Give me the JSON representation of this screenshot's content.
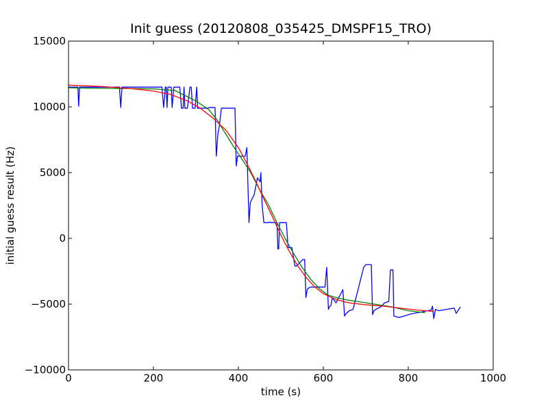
{
  "chart_data": {
    "type": "line",
    "title": "Init guess (20120808_035425_DMSPF15_TRO)",
    "xlabel": "time (s)",
    "ylabel": "initial guess result (Hz)",
    "xlim": [
      0,
      1000
    ],
    "ylim": [
      -10000,
      15000
    ],
    "xticks": [
      0,
      200,
      400,
      600,
      800,
      1000
    ],
    "yticks": [
      -10000,
      -5000,
      0,
      5000,
      10000,
      15000
    ],
    "grid": false,
    "legend": "none",
    "series": [
      {
        "color": "#0000ff",
        "x": [
          0,
          22,
          24,
          26,
          120,
          123,
          126,
          220,
          224,
          228,
          230,
          232,
          234,
          238,
          242,
          244,
          248,
          250,
          262,
          266,
          270,
          272,
          274,
          280,
          286,
          289,
          292,
          294,
          298,
          302,
          304,
          306,
          310,
          328,
          331,
          345,
          348,
          352,
          355,
          360,
          392,
          395,
          398,
          416,
          420,
          425,
          428,
          432,
          437,
          445,
          451,
          453,
          456,
          460,
          468,
          471,
          474,
          476,
          478,
          490,
          491,
          493,
          495,
          497,
          500,
          509,
          513,
          517,
          526,
          533,
          537,
          552,
          556,
          559,
          562,
          564,
          570,
          604,
          608,
          612,
          614,
          618,
          621,
          630,
          646,
          650,
          654,
          656,
          661,
          670,
          695,
          700,
          713,
          716,
          719,
          724,
          729,
          736,
          744,
          754,
          758,
          764,
          766,
          776,
          780,
          806,
          854,
          857,
          860,
          864,
          872,
          908,
          913,
          918,
          923
        ],
        "values": [
          11500,
          11500,
          10050,
          11500,
          11500,
          9950,
          11500,
          11500,
          9950,
          11500,
          11500,
          9950,
          11500,
          11500,
          11500,
          9950,
          11500,
          11500,
          11500,
          9900,
          9900,
          11500,
          9900,
          9900,
          11500,
          11500,
          9900,
          9900,
          9900,
          11500,
          9900,
          9900,
          9900,
          9900,
          9950,
          9950,
          6250,
          8000,
          8500,
          9900,
          9900,
          5500,
          6250,
          6250,
          6900,
          1200,
          2700,
          3000,
          3300,
          4600,
          4300,
          5000,
          2500,
          1200,
          1200,
          1200,
          1250,
          1200,
          1200,
          1200,
          1100,
          -800,
          -800,
          1200,
          1200,
          1200,
          1200,
          -700,
          -700,
          -2100,
          -2100,
          -1600,
          -1600,
          -4500,
          -3900,
          -3800,
          -3700,
          -3700,
          -2200,
          -5400,
          -5200,
          -5100,
          -4500,
          -4900,
          -3900,
          -5900,
          -5700,
          -5650,
          -5500,
          -5400,
          -2200,
          -2000,
          -2000,
          -5800,
          -5500,
          -5400,
          -5300,
          -5200,
          -4900,
          -4800,
          -2400,
          -2400,
          -5900,
          -6000,
          -6000,
          -5750,
          -5450,
          -5150,
          -6100,
          -5400,
          -5500,
          -5300,
          -5700,
          -5450,
          -5200
        ]
      },
      {
        "color": "#008000",
        "x": [
          0,
          50,
          100,
          150,
          200,
          250,
          300,
          330,
          350,
          370,
          390,
          410,
          430,
          450,
          470,
          490,
          510,
          530,
          550,
          570,
          590,
          610,
          630,
          650,
          680,
          720,
          760,
          800,
          840
        ],
        "values": [
          11450,
          11420,
          11400,
          11390,
          11370,
          11250,
          10450,
          9800,
          9000,
          7950,
          6900,
          5950,
          4950,
          3700,
          2600,
          1250,
          0,
          -1150,
          -2200,
          -3100,
          -3800,
          -4300,
          -4500,
          -4650,
          -4800,
          -5000,
          -5200,
          -5500,
          -5650
        ]
      },
      {
        "color": "#ff0000",
        "x": [
          0,
          40,
          80,
          120,
          160,
          200,
          240,
          280,
          310,
          340,
          370,
          400,
          420,
          440,
          460,
          480,
          500,
          520,
          540,
          560,
          580,
          600,
          630,
          660,
          700,
          740,
          780,
          820,
          860
        ],
        "values": [
          11650,
          11600,
          11550,
          11450,
          11350,
          11200,
          10950,
          10450,
          9900,
          9150,
          8250,
          6900,
          5700,
          4400,
          3000,
          1650,
          250,
          -1000,
          -2100,
          -3000,
          -3700,
          -4200,
          -4650,
          -4900,
          -5050,
          -5150,
          -5300,
          -5450,
          -5550
        ]
      }
    ]
  }
}
